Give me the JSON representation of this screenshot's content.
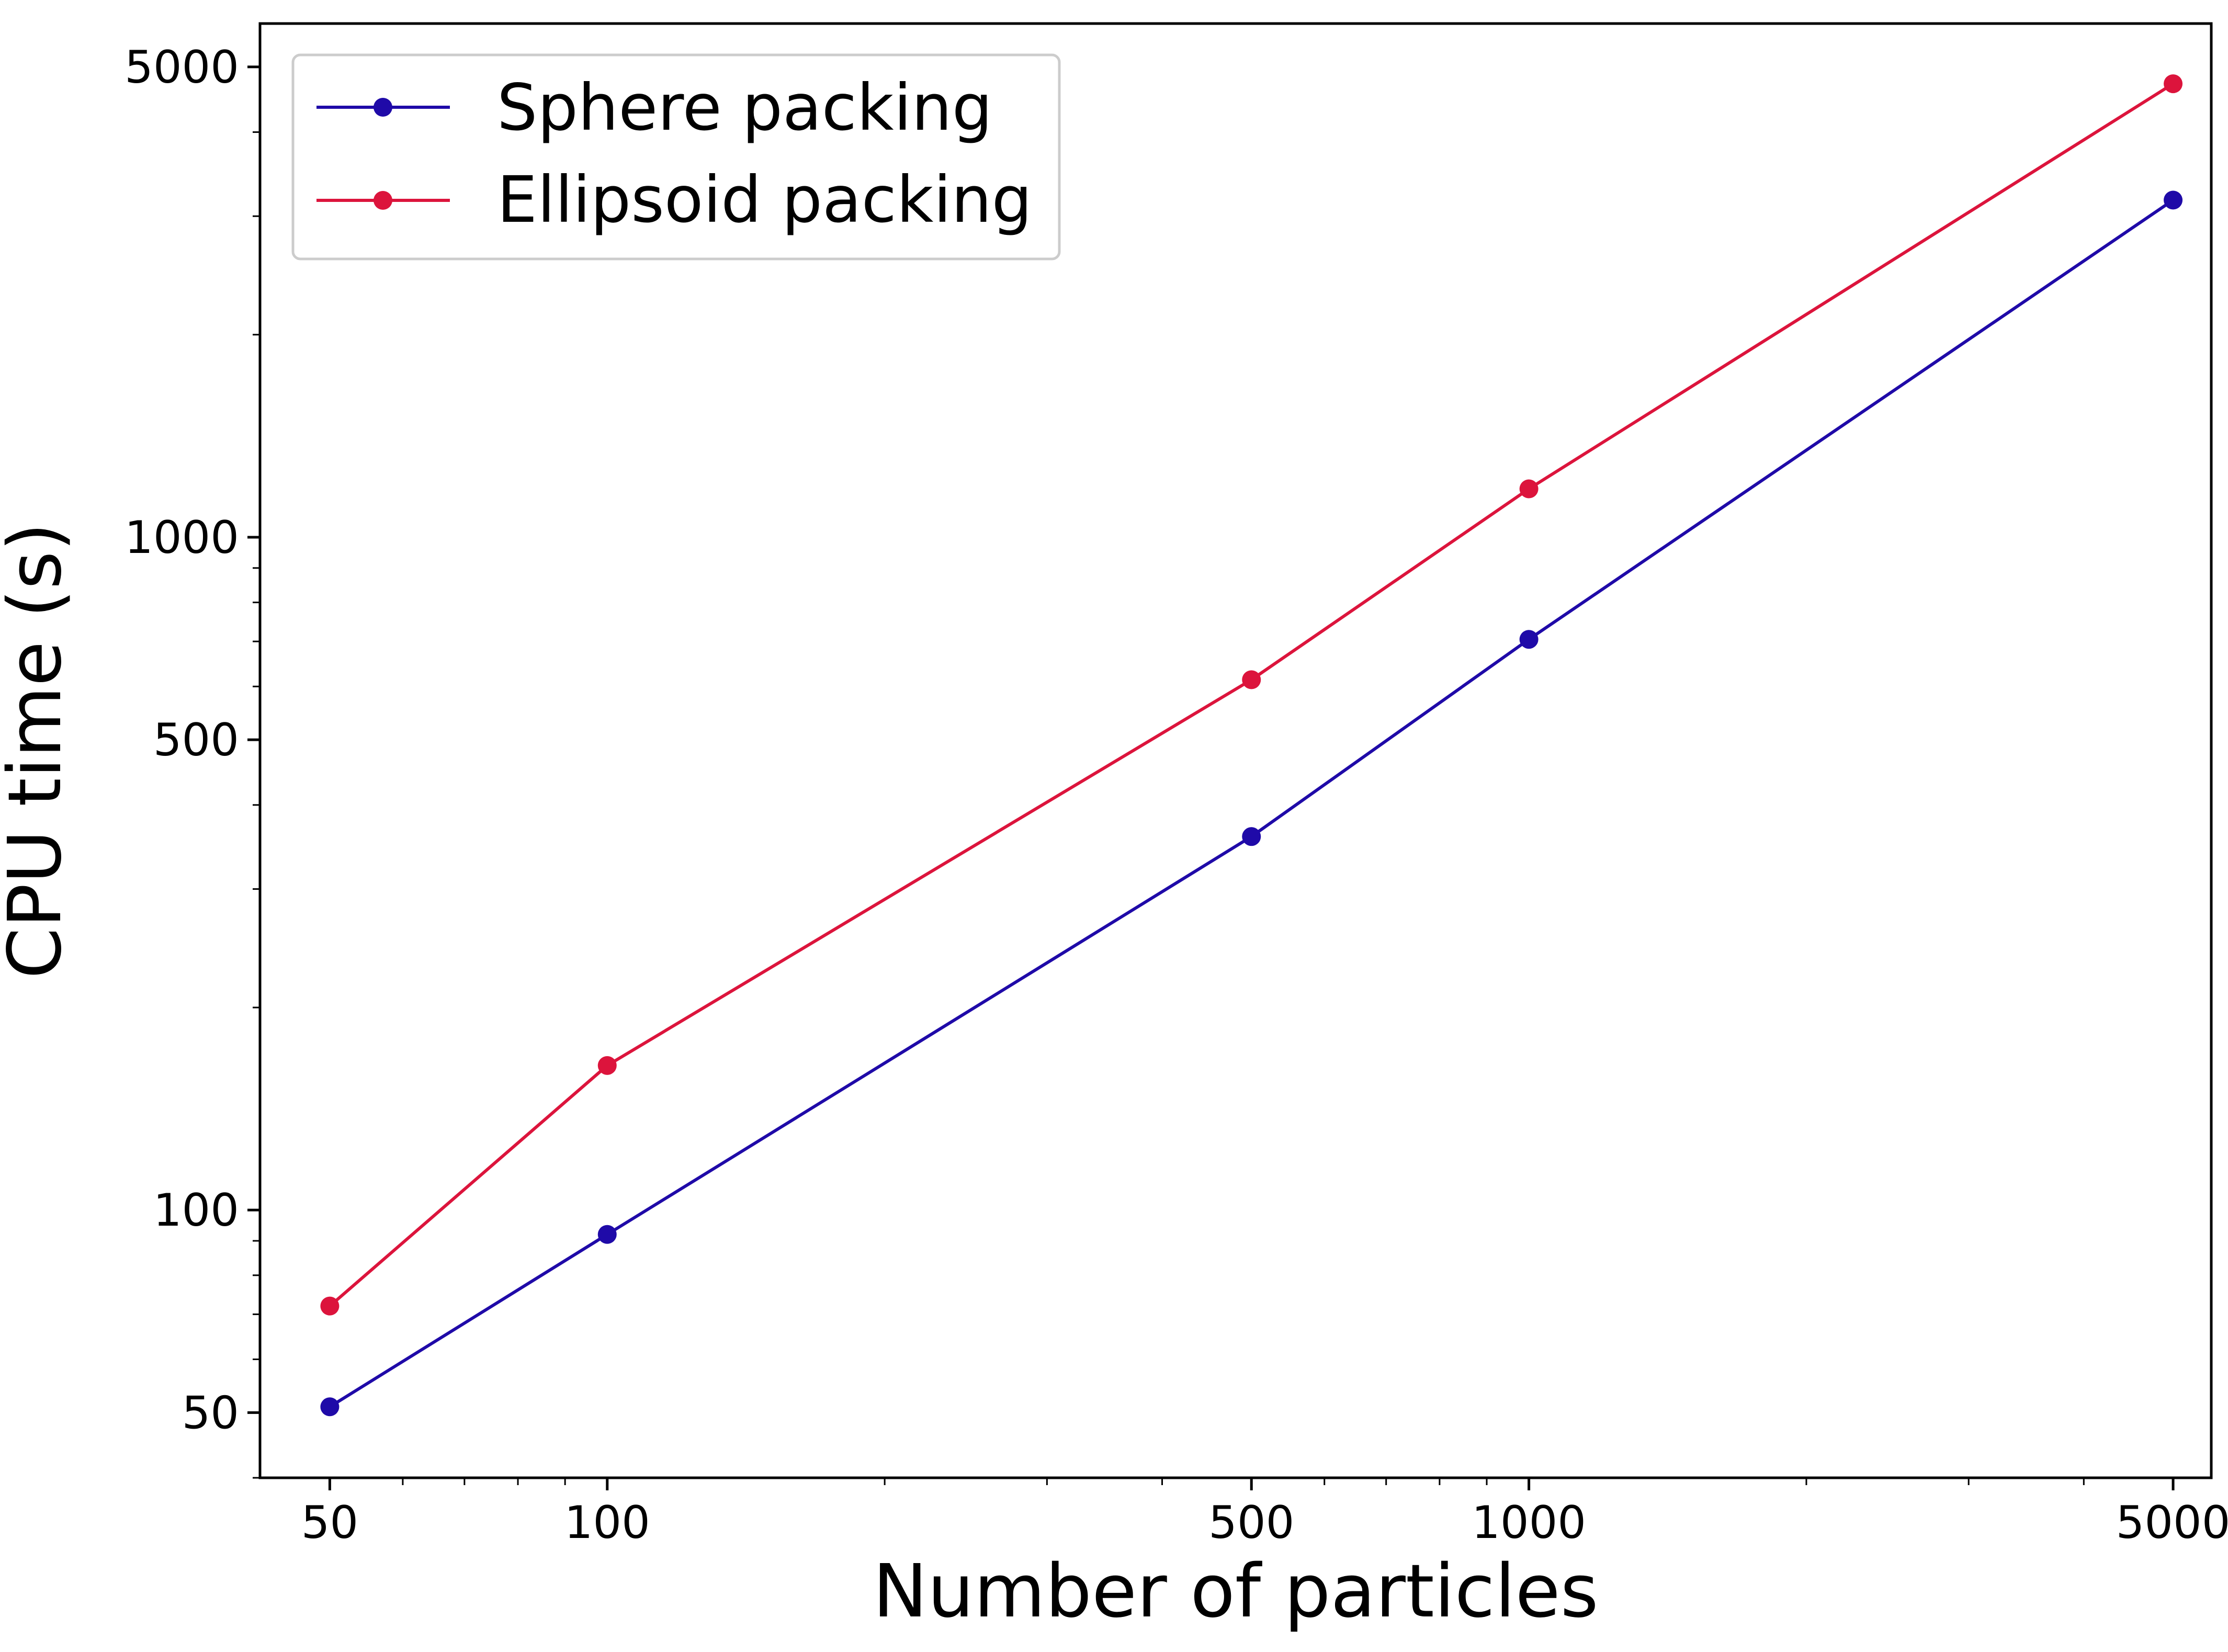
{
  "chart_data": {
    "type": "line",
    "xlabel": "Number of particles",
    "ylabel": "CPU time (s)",
    "xscale": "log",
    "yscale": "log",
    "xlim": [
      42,
      5500
    ],
    "ylim": [
      40,
      5800
    ],
    "xticks": [
      50,
      100,
      500,
      1000,
      5000
    ],
    "xtick_labels": [
      "50",
      "100",
      "500",
      "1000",
      "5000"
    ],
    "yticks": [
      50,
      100,
      500,
      1000,
      5000
    ],
    "ytick_labels": [
      "50",
      "100",
      "500",
      "1000",
      "5000"
    ],
    "grid": false,
    "legend_position": "top-left",
    "series": [
      {
        "name": "Sphere packing",
        "color": "#1f0aa8",
        "marker": "circle",
        "x": [
          50,
          100,
          500,
          1000,
          5000
        ],
        "y": [
          51,
          92,
          359,
          705,
          3170
        ]
      },
      {
        "name": "Ellipsoid packing",
        "color": "#dc143c",
        "marker": "circle",
        "x": [
          50,
          100,
          500,
          1000,
          5000
        ],
        "y": [
          72,
          164,
          614,
          1180,
          4720
        ]
      }
    ]
  }
}
